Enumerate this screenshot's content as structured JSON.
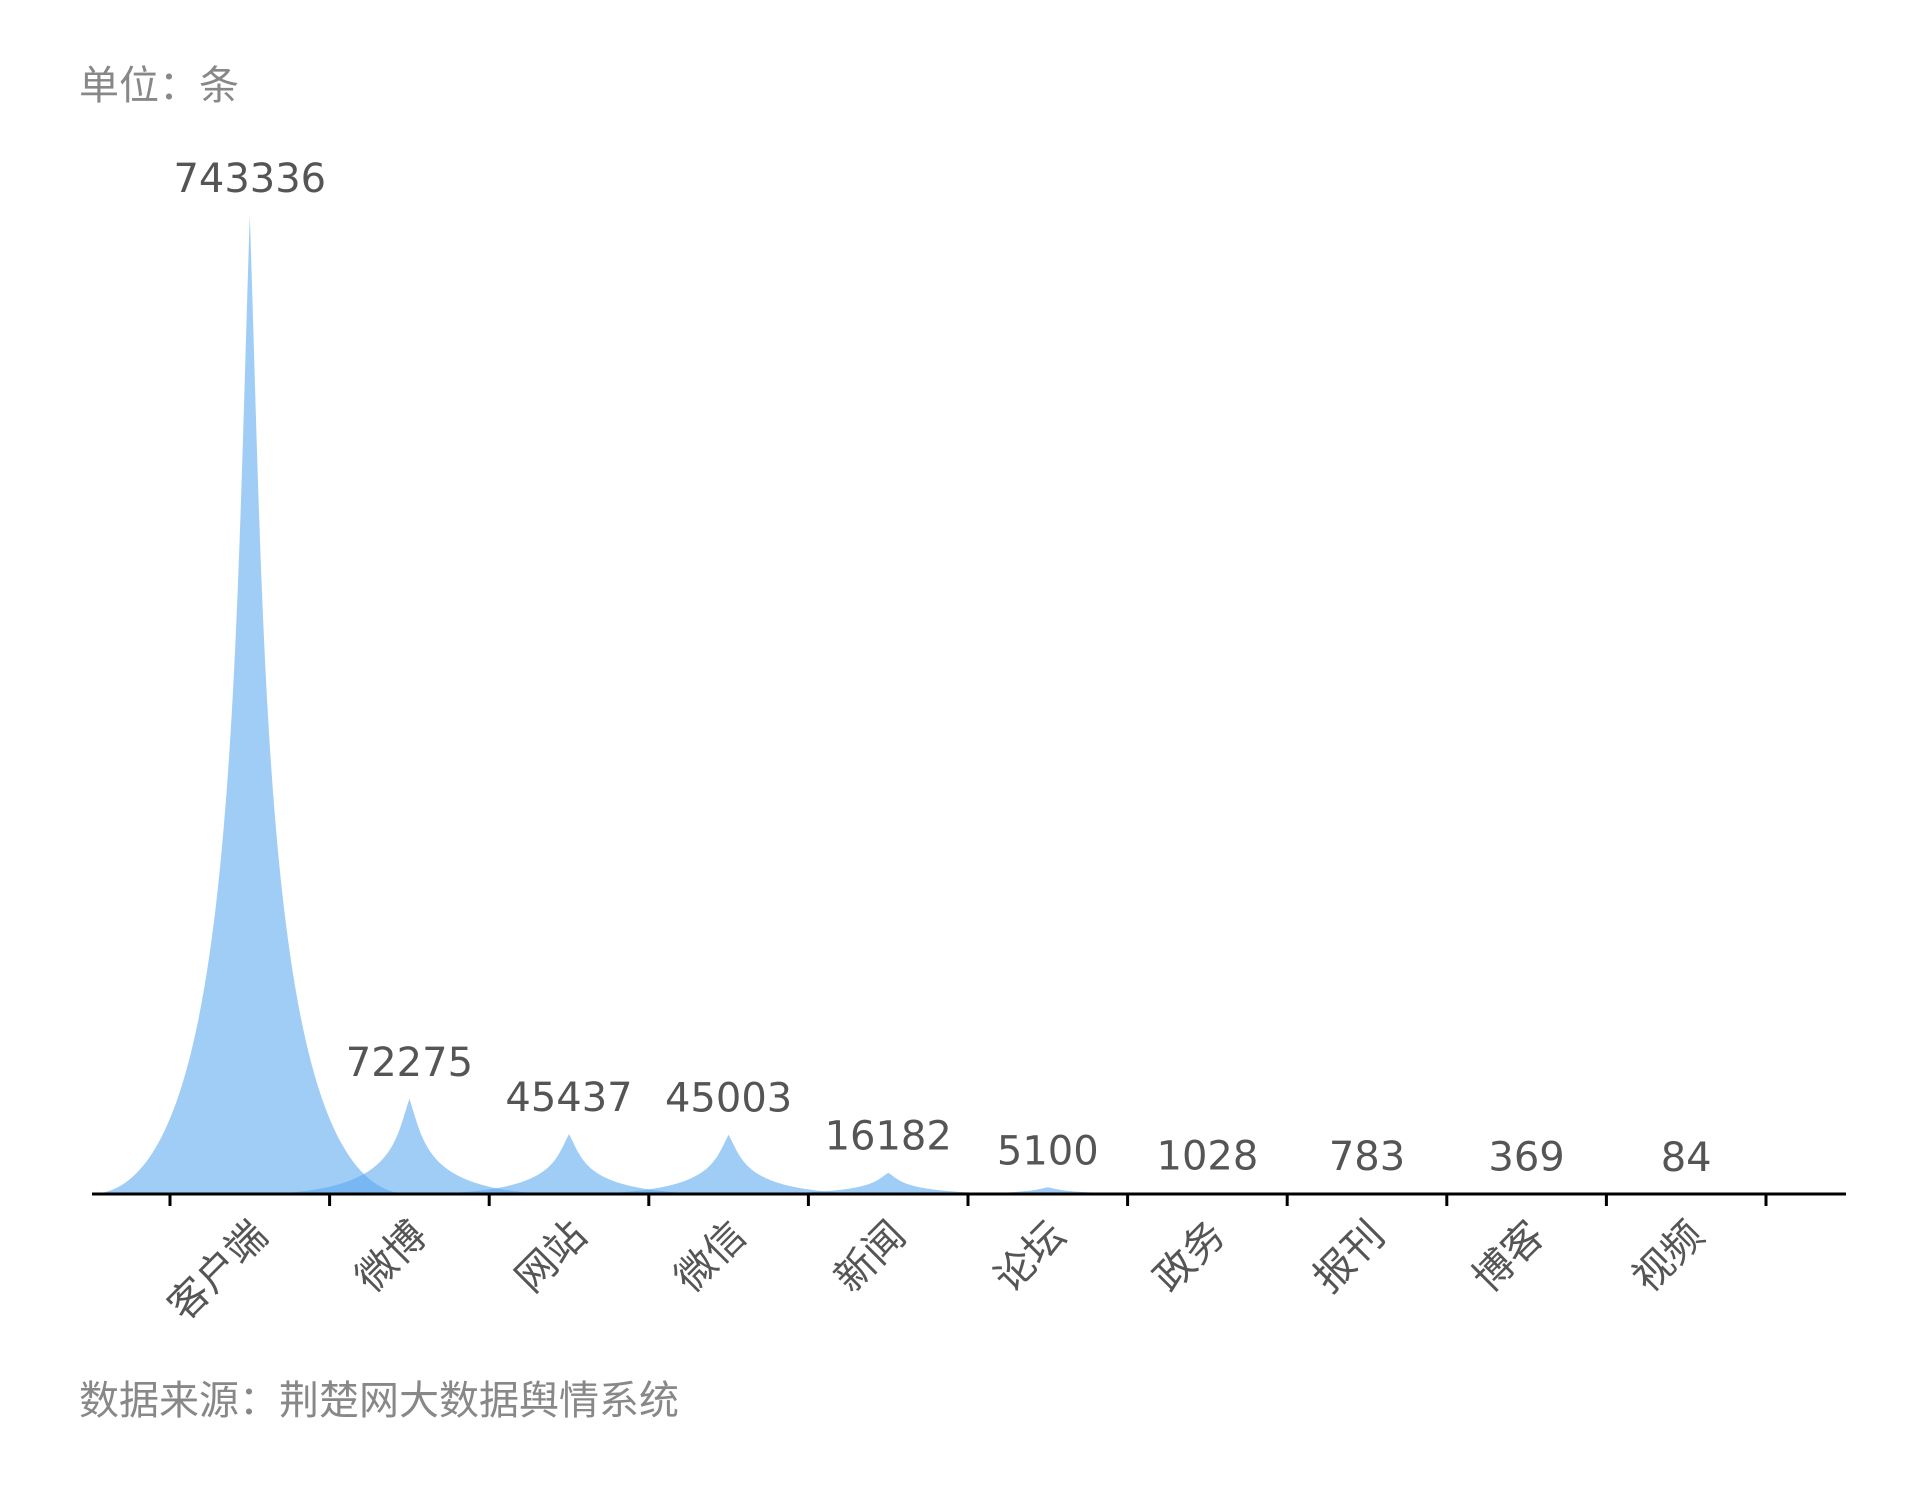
{
  "chart_data": {
    "type": "peak-bar",
    "title": "单位：条",
    "source": "数据来源：荆楚网大数据舆情系统",
    "categories": [
      "客户端",
      "微博",
      "网站",
      "微信",
      "新闻",
      "论坛",
      "政务",
      "报刊",
      "博客",
      "视频"
    ],
    "values": [
      743336,
      72275,
      45437,
      45003,
      16182,
      5100,
      1028,
      783,
      369,
      84
    ],
    "color": "#5aa9f0"
  }
}
